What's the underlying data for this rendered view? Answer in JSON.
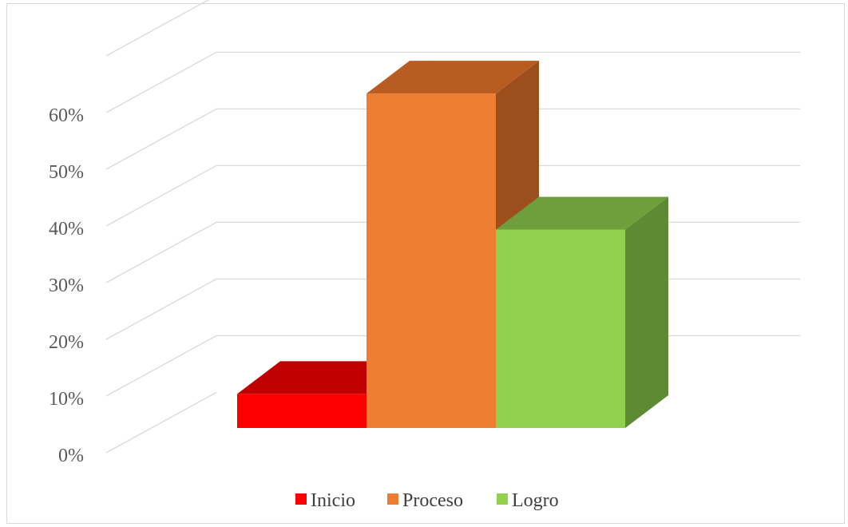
{
  "chart_data": {
    "type": "bar",
    "style": "3d-column",
    "categories": [
      "Inicio",
      "Proceso",
      "Logro"
    ],
    "series": [
      {
        "name": "Inicio",
        "value": 0.06,
        "color": "#ff0000",
        "top_color": "#c00000",
        "side_color": "#c00000"
      },
      {
        "name": "Proceso",
        "value": 0.59,
        "color": "#ed7d31",
        "top_color": "#b85c22",
        "side_color": "#9c4f1c"
      },
      {
        "name": "Logro",
        "value": 0.35,
        "color": "#92d050",
        "top_color": "#6f9e3d",
        "side_color": "#5e8a33"
      }
    ],
    "y_ticks": [
      "0%",
      "10%",
      "20%",
      "30%",
      "40%",
      "50%",
      "60%"
    ],
    "ylim": [
      0,
      0.7
    ],
    "grid": true,
    "legend_position": "bottom",
    "title": "",
    "xlabel": "",
    "ylabel": ""
  }
}
